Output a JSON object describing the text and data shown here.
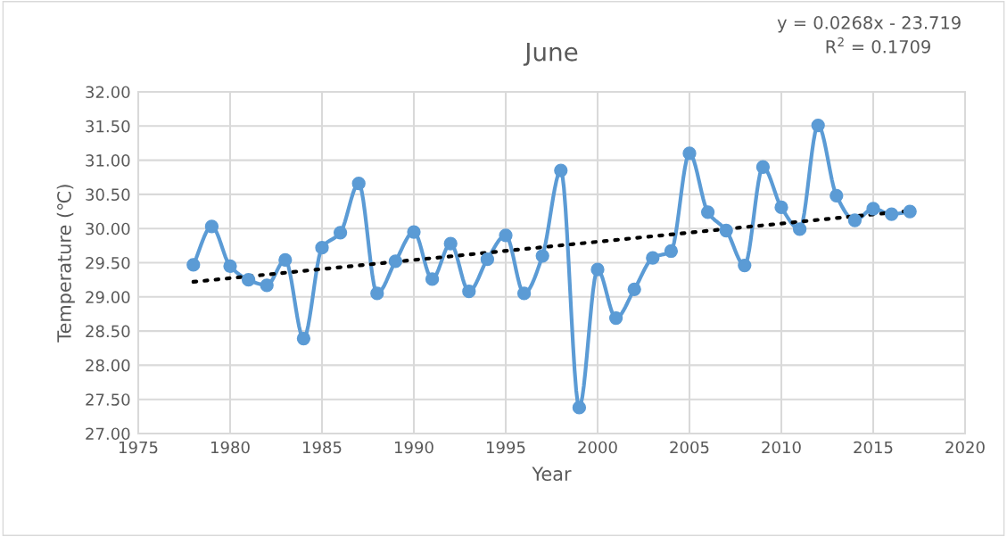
{
  "chart_data": {
    "type": "line",
    "title": "June",
    "xlabel": "Year",
    "ylabel": "Temperature (℃)",
    "x": [
      1978,
      1979,
      1980,
      1981,
      1982,
      1983,
      1984,
      1985,
      1986,
      1987,
      1988,
      1989,
      1990,
      1991,
      1992,
      1993,
      1994,
      1995,
      1996,
      1997,
      1998,
      1999,
      2000,
      2001,
      2002,
      2003,
      2004,
      2005,
      2006,
      2007,
      2008,
      2009,
      2010,
      2011,
      2012,
      2013,
      2014,
      2015,
      2016,
      2017
    ],
    "series": [
      {
        "color": "#5b9bd5",
        "marker": "circle",
        "line_style": "solid",
        "values": [
          29.47,
          30.03,
          29.45,
          29.25,
          29.17,
          29.54,
          28.39,
          29.72,
          29.94,
          30.66,
          29.05,
          29.52,
          29.95,
          29.26,
          29.78,
          29.08,
          29.55,
          29.9,
          29.05,
          29.6,
          30.85,
          27.38,
          29.4,
          28.69,
          29.11,
          29.57,
          29.67,
          31.1,
          30.24,
          29.97,
          29.46,
          30.9,
          30.31,
          29.99,
          31.51,
          30.48,
          30.12,
          30.29,
          30.21,
          30.25
        ]
      },
      {
        "type": "line",
        "color": "#000000",
        "marker": "none",
        "line_style": "dotted",
        "x": [
          1978,
          2017
        ],
        "values": [
          29.22,
          30.26
        ]
      }
    ],
    "xlim": [
      1975,
      2020
    ],
    "xticks": [
      1975,
      1980,
      1985,
      1990,
      1995,
      2000,
      2005,
      2010,
      2015,
      2020
    ],
    "ylim": [
      27,
      32
    ],
    "yticks": [
      {
        "value": 27,
        "label": "27.00"
      },
      {
        "value": 27.5,
        "label": "27.50"
      },
      {
        "value": 28,
        "label": "28.00"
      },
      {
        "value": 28.5,
        "label": "28.50"
      },
      {
        "value": 29,
        "label": "29.00"
      },
      {
        "value": 29.5,
        "label": "29.50"
      },
      {
        "value": 30,
        "label": "30.00"
      },
      {
        "value": 30.5,
        "label": "30.50"
      },
      {
        "value": 31,
        "label": "31.00"
      },
      {
        "value": 31.5,
        "label": "31.50"
      },
      {
        "value": 32,
        "label": "32.00"
      }
    ],
    "grid": true,
    "legend": false,
    "annotations": [
      "y = 0.0268x - 23.719",
      "R$^{2}$ = 0.1709"
    ]
  }
}
